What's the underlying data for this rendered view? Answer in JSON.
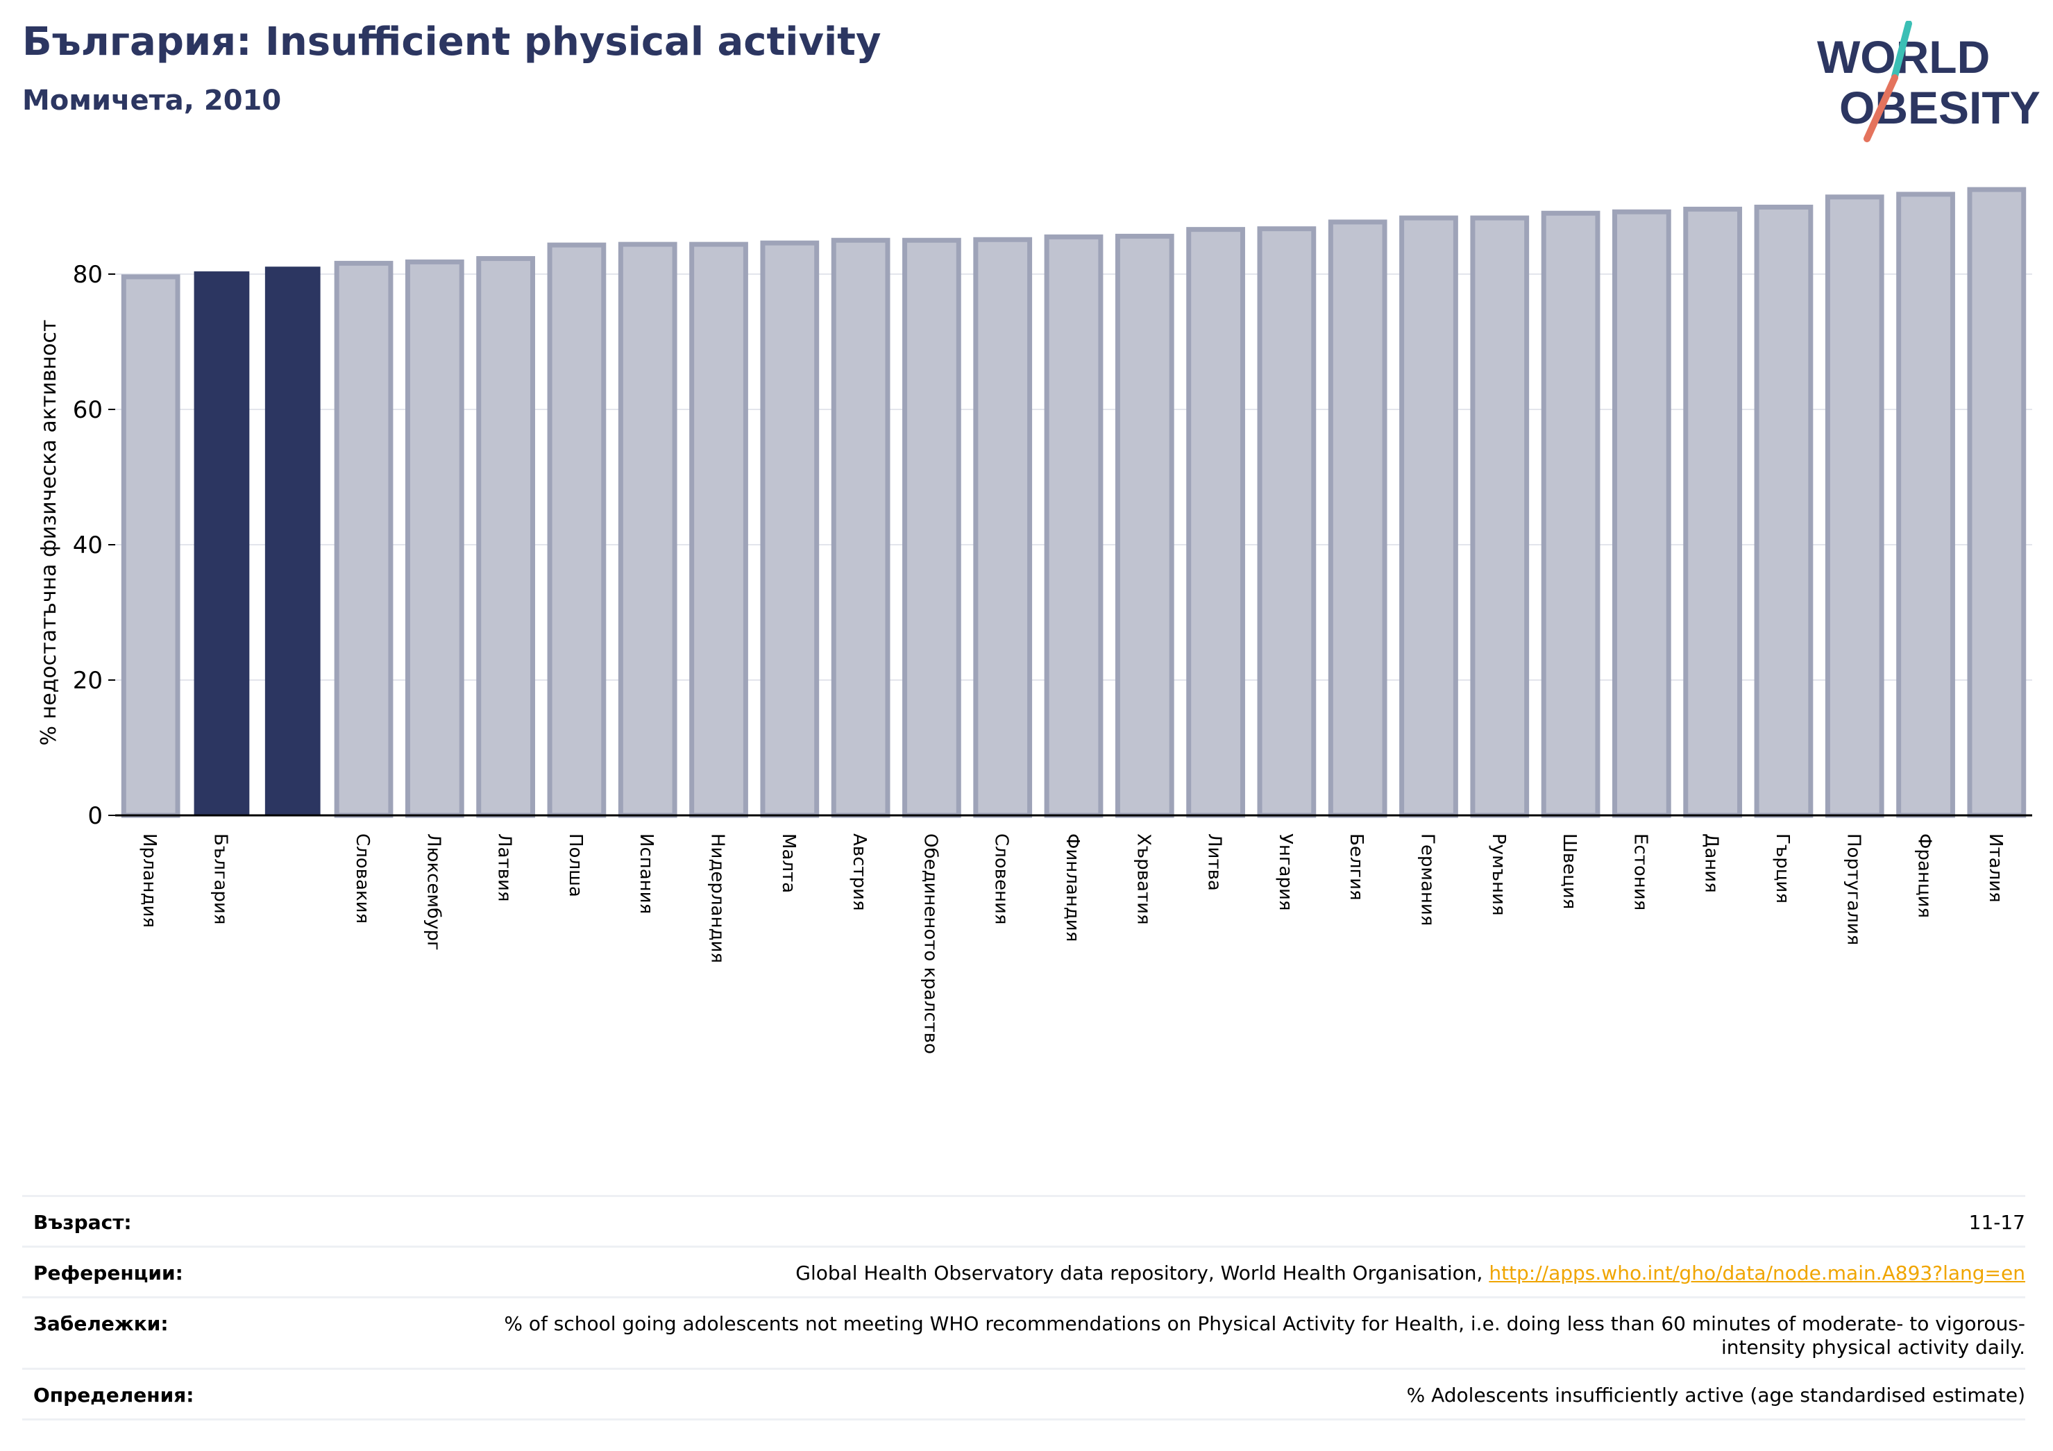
{
  "header": {
    "title": "България: Insufficient physical activity",
    "subtitle": "Момичета, 2010"
  },
  "logo": {
    "line1": "WORLD",
    "line2": "OBESITY",
    "text_color": "#2c3661",
    "slash_teal": "#3bbfb5",
    "slash_coral": "#e4735d"
  },
  "colors": {
    "highlight": "#2c3661",
    "bar_fill": "#c0c3d0",
    "bar_stroke": "#9ea3b8"
  },
  "chart_data": {
    "type": "bar",
    "ylabel": "% недостатъчна физическа активност",
    "ylim": [
      0,
      100
    ],
    "yticks": [
      0,
      20,
      40,
      60,
      80
    ],
    "grid": true,
    "categories": [
      "Ирландия",
      "България",
      "",
      "Словакия",
      "Люксембург",
      "Латвия",
      "Полша",
      "Испания",
      "Нидерландия",
      "Малта",
      "Австрия",
      "Обединеното кралство",
      "Словения",
      "Финландия",
      "Хърватия",
      "Литва",
      "Унгария",
      "Белгия",
      "Германия",
      "Румъния",
      "Швеция",
      "Естония",
      "Дания",
      "Гърция",
      "Португалия",
      "Франция",
      "Италия"
    ],
    "values": [
      79.6,
      80.3,
      81.0,
      81.6,
      81.8,
      82.3,
      84.3,
      84.4,
      84.4,
      84.6,
      85.0,
      85.0,
      85.1,
      85.5,
      85.6,
      86.6,
      86.7,
      87.7,
      88.3,
      88.3,
      89.0,
      89.2,
      89.6,
      89.9,
      91.4,
      91.8,
      92.5
    ],
    "highlighted": [
      1,
      2
    ]
  },
  "meta": [
    {
      "label": "Възраст:",
      "value": "11-17"
    },
    {
      "label": "Референции:",
      "value": "Global Health Observatory data repository, World Health Organisation, ",
      "link": "http://apps.who.int/gho/data/node.main.A893?lang=en"
    },
    {
      "label": "Забележки:",
      "value": "% of school going adolescents not meeting WHO recommendations on Physical Activity for Health, i.e. doing less than 60 minutes of moderate- to vigorous-intensity physical activity daily."
    },
    {
      "label": "Определения:",
      "value": "% Adolescents insufficiently active (age standardised estimate)"
    }
  ]
}
